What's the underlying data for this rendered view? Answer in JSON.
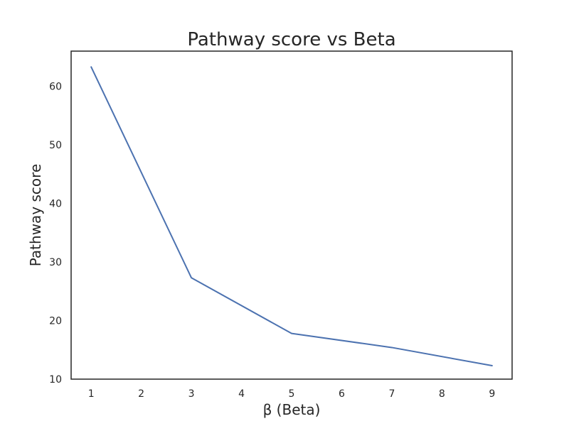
{
  "chart_data": {
    "type": "line",
    "title": "Pathway score vs Beta",
    "xlabel": "β (Beta)",
    "ylabel": "Pathway score",
    "x": [
      1,
      3,
      5,
      7,
      9
    ],
    "series": [
      {
        "values": [
          63.3,
          27.3,
          17.8,
          15.4,
          12.3
        ],
        "color": "#4c72b0"
      }
    ],
    "xlim": [
      0.6,
      9.4
    ],
    "ylim": [
      10,
      66
    ],
    "xticks": [
      1,
      2,
      3,
      4,
      5,
      6,
      7,
      8,
      9
    ],
    "yticks": [
      10,
      20,
      30,
      40,
      50,
      60
    ],
    "grid": false,
    "legend": "none"
  }
}
